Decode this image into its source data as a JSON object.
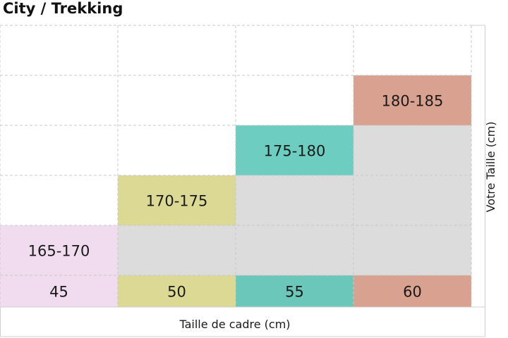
{
  "title": "City / Trekking",
  "chart_data": {
    "type": "table",
    "title": "City / Trekking",
    "xlabel": "Taille de cadre (cm)",
    "ylabel": "Votre Taille (cm)",
    "categories": [
      "45",
      "50",
      "55",
      "60"
    ],
    "rows": [
      {
        "frame": "45",
        "height_range": "165-170",
        "color": "#f0dcee"
      },
      {
        "frame": "50",
        "height_range": "170-175",
        "color": "#dcd995"
      },
      {
        "frame": "55",
        "height_range": "175-180",
        "color": "#6ccdc0"
      },
      {
        "frame": "60",
        "height_range": "180-185",
        "color": "#d9a190"
      }
    ],
    "frame_colors": [
      "#f0dcee",
      "#dcd995",
      "#6cc7bb",
      "#d9a190"
    ],
    "fill_color": "#dcdcdc",
    "grid": true
  }
}
